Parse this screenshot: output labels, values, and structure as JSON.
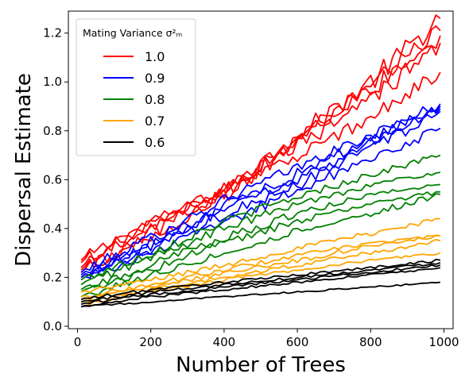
{
  "chart_data": {
    "type": "line",
    "title": "",
    "xlabel": "Number of Trees",
    "ylabel": "Dispersal Estimate",
    "xlim": [
      -25,
      1025
    ],
    "ylim": [
      -0.01,
      1.29
    ],
    "xticks": [
      0,
      200,
      400,
      600,
      800,
      1000
    ],
    "yticks": [
      0.0,
      0.2,
      0.4,
      0.6,
      0.8,
      1.0,
      1.2
    ],
    "grid": false,
    "legend": {
      "title": "Mating Variance σ²ₘ",
      "placement": "top-left",
      "entries": [
        {
          "label": "1.0",
          "color": "#ff0000"
        },
        {
          "label": "0.9",
          "color": "#0000ff"
        },
        {
          "label": "0.8",
          "color": "#008000"
        },
        {
          "label": "0.7",
          "color": "#ffa500"
        },
        {
          "label": "0.6",
          "color": "#000000"
        }
      ]
    },
    "series_groups": [
      {
        "name": "1.0",
        "color": "#ff0000",
        "runs": [
          {
            "x": [
              10,
              200,
              400,
              600,
              800,
              990
            ],
            "y": [
              0.27,
              0.43,
              0.55,
              0.78,
              1.0,
              1.26
            ]
          },
          {
            "x": [
              10,
              200,
              400,
              600,
              800,
              990
            ],
            "y": [
              0.26,
              0.42,
              0.56,
              0.77,
              0.98,
              1.21
            ]
          },
          {
            "x": [
              10,
              200,
              400,
              600,
              800,
              990
            ],
            "y": [
              0.24,
              0.4,
              0.55,
              0.76,
              0.97,
              1.19
            ]
          },
          {
            "x": [
              10,
              200,
              400,
              600,
              800,
              990
            ],
            "y": [
              0.23,
              0.38,
              0.55,
              0.74,
              0.92,
              1.16
            ]
          },
          {
            "x": [
              10,
              200,
              400,
              600,
              800,
              990
            ],
            "y": [
              0.22,
              0.37,
              0.53,
              0.7,
              0.85,
              1.04
            ]
          }
        ]
      },
      {
        "name": "0.9",
        "color": "#0000ff",
        "runs": [
          {
            "x": [
              10,
              200,
              400,
              600,
              800,
              990
            ],
            "y": [
              0.22,
              0.36,
              0.52,
              0.65,
              0.78,
              0.91
            ]
          },
          {
            "x": [
              10,
              200,
              400,
              600,
              800,
              990
            ],
            "y": [
              0.21,
              0.34,
              0.5,
              0.62,
              0.77,
              0.9
            ]
          },
          {
            "x": [
              10,
              200,
              400,
              600,
              800,
              990
            ],
            "y": [
              0.2,
              0.33,
              0.48,
              0.6,
              0.75,
              0.89
            ]
          },
          {
            "x": [
              10,
              200,
              400,
              600,
              800,
              990
            ],
            "y": [
              0.2,
              0.31,
              0.46,
              0.58,
              0.73,
              0.88
            ]
          },
          {
            "x": [
              10,
              200,
              400,
              600,
              800,
              990
            ],
            "y": [
              0.19,
              0.3,
              0.42,
              0.56,
              0.68,
              0.81
            ]
          }
        ]
      },
      {
        "name": "0.8",
        "color": "#008000",
        "runs": [
          {
            "x": [
              10,
              200,
              400,
              600,
              800,
              990
            ],
            "y": [
              0.19,
              0.3,
              0.43,
              0.53,
              0.62,
              0.7
            ]
          },
          {
            "x": [
              10,
              200,
              400,
              600,
              800,
              990
            ],
            "y": [
              0.17,
              0.28,
              0.4,
              0.5,
              0.58,
              0.63
            ]
          },
          {
            "x": [
              10,
              200,
              400,
              600,
              800,
              990
            ],
            "y": [
              0.15,
              0.25,
              0.36,
              0.46,
              0.54,
              0.58
            ]
          },
          {
            "x": [
              10,
              200,
              400,
              600,
              800,
              990
            ],
            "y": [
              0.14,
              0.23,
              0.34,
              0.43,
              0.5,
              0.55
            ]
          },
          {
            "x": [
              10,
              200,
              400,
              600,
              800,
              990
            ],
            "y": [
              0.12,
              0.21,
              0.3,
              0.39,
              0.46,
              0.54
            ]
          }
        ]
      },
      {
        "name": "0.7",
        "color": "#ffa500",
        "runs": [
          {
            "x": [
              10,
              200,
              400,
              600,
              800,
              990
            ],
            "y": [
              0.14,
              0.19,
              0.25,
              0.32,
              0.38,
              0.44
            ]
          },
          {
            "x": [
              10,
              200,
              400,
              600,
              800,
              990
            ],
            "y": [
              0.12,
              0.17,
              0.23,
              0.29,
              0.34,
              0.37
            ]
          },
          {
            "x": [
              10,
              200,
              400,
              600,
              800,
              990
            ],
            "y": [
              0.11,
              0.16,
              0.22,
              0.27,
              0.33,
              0.37
            ]
          },
          {
            "x": [
              10,
              200,
              400,
              600,
              800,
              990
            ],
            "y": [
              0.1,
              0.15,
              0.2,
              0.25,
              0.3,
              0.35
            ]
          },
          {
            "x": [
              10,
              200,
              400,
              600,
              800,
              990
            ],
            "y": [
              0.09,
              0.14,
              0.19,
              0.23,
              0.27,
              0.3
            ]
          }
        ]
      },
      {
        "name": "0.6",
        "color": "#000000",
        "runs": [
          {
            "x": [
              10,
              200,
              400,
              600,
              800,
              990
            ],
            "y": [
              0.11,
              0.15,
              0.18,
              0.21,
              0.24,
              0.27
            ]
          },
          {
            "x": [
              10,
              200,
              400,
              600,
              800,
              990
            ],
            "y": [
              0.1,
              0.14,
              0.17,
              0.2,
              0.23,
              0.26
            ]
          },
          {
            "x": [
              10,
              200,
              400,
              600,
              800,
              990
            ],
            "y": [
              0.09,
              0.13,
              0.16,
              0.19,
              0.22,
              0.25
            ]
          },
          {
            "x": [
              10,
              200,
              400,
              600,
              800,
              990
            ],
            "y": [
              0.08,
              0.12,
              0.15,
              0.18,
              0.21,
              0.24
            ]
          },
          {
            "x": [
              10,
              200,
              400,
              600,
              800,
              990
            ],
            "y": [
              0.08,
              0.1,
              0.12,
              0.14,
              0.16,
              0.18
            ]
          }
        ]
      }
    ]
  }
}
